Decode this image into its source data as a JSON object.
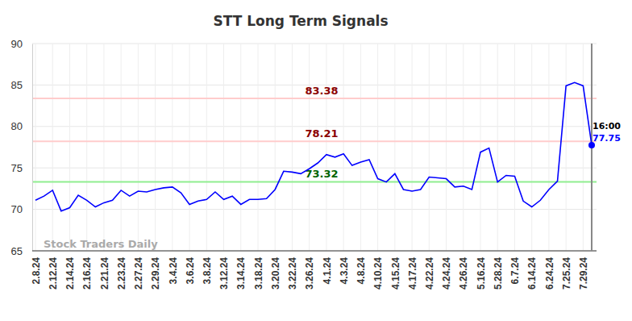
{
  "chart_data": {
    "type": "line",
    "title": "STT Long Term Signals",
    "categories": [
      "2.8.24",
      null,
      "2.12.24",
      null,
      "2.14.24",
      null,
      "2.16.24",
      null,
      "2.21.24",
      null,
      "2.23.24",
      null,
      "2.27.24",
      null,
      "2.29.24",
      null,
      "3.4.24",
      null,
      "3.6.24",
      null,
      "3.8.24",
      null,
      "3.12.24",
      null,
      "3.14.24",
      null,
      "3.18.24",
      null,
      "3.20.24",
      null,
      "3.22.24",
      null,
      "3.26.24",
      null,
      "4.1.24",
      null,
      "4.3.24",
      null,
      "4.8.24",
      null,
      "4.10.24",
      null,
      "4.15.24",
      null,
      "4.17.24",
      null,
      "4.22.24",
      null,
      "4.24.24",
      null,
      "4.26.24",
      null,
      "5.16.24",
      null,
      "5.28.24",
      null,
      "6.7.24",
      null,
      "6.14.24",
      null,
      "6.24.24",
      null,
      "7.25.24",
      null,
      "7.29.24",
      null
    ],
    "values": [
      71.1,
      71.6,
      72.3,
      69.8,
      70.2,
      71.7,
      71.1,
      70.3,
      70.8,
      71.1,
      72.3,
      71.6,
      72.2,
      72.1,
      72.4,
      72.6,
      72.7,
      72.0,
      70.6,
      71.0,
      71.2,
      72.1,
      71.2,
      71.6,
      70.6,
      71.2,
      71.2,
      71.3,
      72.4,
      74.6,
      74.5,
      74.3,
      74.9,
      75.6,
      76.6,
      76.3,
      76.7,
      75.3,
      75.7,
      76.0,
      73.7,
      73.3,
      74.3,
      72.4,
      72.2,
      72.4,
      73.9,
      73.8,
      73.7,
      72.7,
      72.8,
      72.4,
      76.9,
      77.4,
      73.3,
      74.1,
      74.0,
      71.0,
      70.3,
      71.1,
      72.4,
      73.4,
      84.9,
      85.3,
      84.9,
      77.75
    ],
    "color": "#0000ff",
    "ylim": [
      65,
      90
    ],
    "yticks": [
      65,
      70,
      75,
      80,
      85,
      90
    ],
    "grid": true,
    "reference_lines": [
      {
        "value": 83.38,
        "label": "83.38",
        "color": "#ffcccc",
        "label_color": "#8b0000"
      },
      {
        "value": 78.21,
        "label": "78.21",
        "color": "#ffcccc",
        "label_color": "#8b0000"
      },
      {
        "value": 73.32,
        "label": "73.32",
        "color": "#90ee90",
        "label_color": "#006400"
      }
    ],
    "last_time_label": "16:00",
    "watermark": "Stock Traders Daily"
  }
}
